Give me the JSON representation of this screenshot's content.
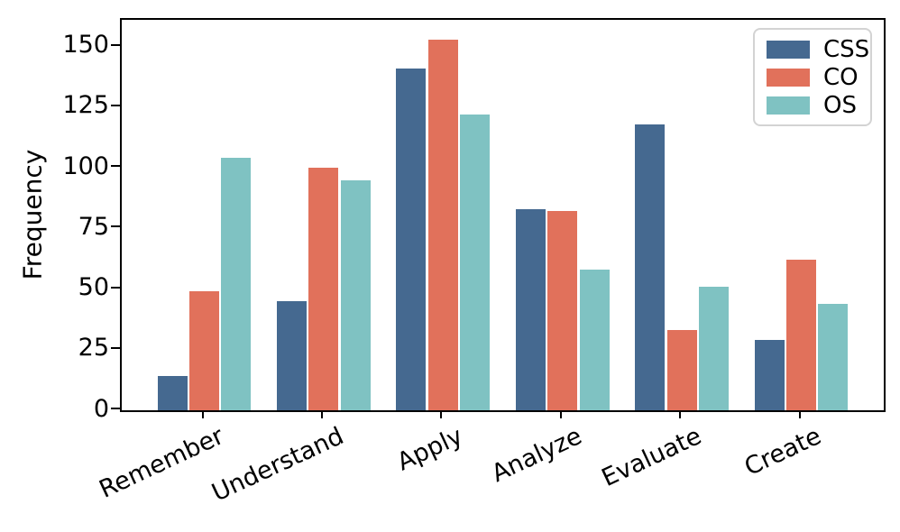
{
  "chart_data": {
    "type": "bar",
    "title": "",
    "xlabel": "",
    "ylabel": "Frequency",
    "categories": [
      "Remember",
      "Understand",
      "Apply",
      "Analyze",
      "Evaluate",
      "Create"
    ],
    "series": [
      {
        "name": "CSS",
        "color": "#456990",
        "values": [
          14,
          45,
          141,
          83,
          118,
          29
        ]
      },
      {
        "name": "CO",
        "color": "#e1715b",
        "values": [
          49,
          100,
          153,
          82,
          33,
          62
        ]
      },
      {
        "name": "OS",
        "color": "#7fc2c2",
        "values": [
          104,
          95,
          122,
          58,
          51,
          44
        ]
      }
    ],
    "yticks": [
      0,
      25,
      50,
      75,
      100,
      125,
      150
    ],
    "ylim": [
      0,
      161
    ],
    "grid": false,
    "legend_position": "upper right",
    "frame": "full-box",
    "colors": {
      "axis": "#000000",
      "background": "#ffffff",
      "legend_border": "#d3d3d3",
      "bar_edge": "#ffffff"
    }
  }
}
